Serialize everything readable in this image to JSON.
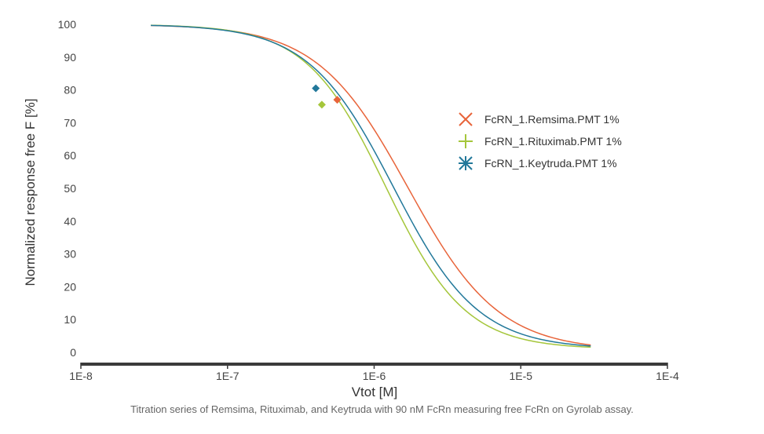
{
  "chart_data": {
    "type": "line",
    "xlabel": "Vtot [M]",
    "ylabel": "Normalized response free F [%]",
    "x_scale": "log",
    "xlim": [
      "1E-8",
      "1E-4"
    ],
    "x_ticks": [
      "1E-8",
      "1E-7",
      "1E-6",
      "1E-5",
      "1E-4"
    ],
    "ylim": [
      0,
      100
    ],
    "y_ticks": [
      "0",
      "10",
      "20",
      "30",
      "40",
      "50",
      "60",
      "70",
      "80",
      "90",
      "100"
    ],
    "grid": false,
    "legend_position": "top-right",
    "series": [
      {
        "name": "FcRN_1.Remsima.PMT 1%",
        "color": "#e8643a",
        "marker": "x",
        "curve": {
          "top": 100,
          "bottom": 0.5,
          "ec50": 1.7e-06,
          "hill": 1.4,
          "x_from": 3e-08,
          "x_to": 3e-05
        },
        "highlight_point": {
          "x": 5.6e-07,
          "y": 77
        }
      },
      {
        "name": "FcRN_1.Rituximab.PMT 1%",
        "color": "#a5c63b",
        "marker": "+",
        "curve": {
          "top": 100,
          "bottom": 1.0,
          "ec50": 1.2e-06,
          "hill": 1.6,
          "x_from": 3e-08,
          "x_to": 3e-05
        },
        "highlight_point": {
          "x": 4.4e-07,
          "y": 75.5
        }
      },
      {
        "name": "FcRN_1.Keytruda.PMT 1%",
        "color": "#22789a",
        "marker": "asterisk",
        "curve": {
          "top": 100,
          "bottom": 1.0,
          "ec50": 1.35e-06,
          "hill": 1.5,
          "x_from": 3e-08,
          "x_to": 3e-05
        },
        "highlight_point": {
          "x": 4e-07,
          "y": 80.5
        }
      }
    ]
  },
  "caption": "Titration series of Remsima, Rituximab, and Keytruda with 90 nM FcRn measuring free FcRn on Gyrolab assay."
}
